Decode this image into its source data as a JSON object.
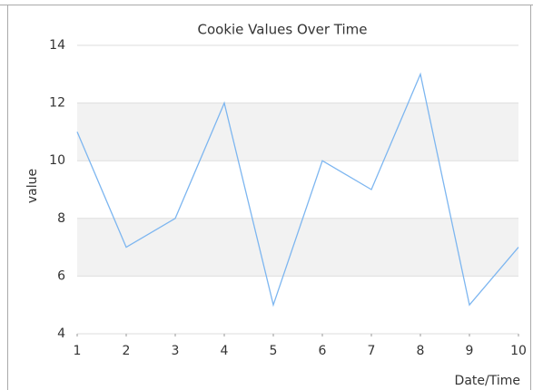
{
  "chart_data": {
    "type": "line",
    "title": "Cookie Values Over Time",
    "x_label": "Date/Time",
    "y_label": "value",
    "x": [
      1,
      2,
      3,
      4,
      5,
      6,
      7,
      8,
      9,
      10
    ],
    "series": [
      {
        "name": "value",
        "color": "#7db6f0",
        "values": [
          11,
          7,
          8,
          12,
          5,
          10,
          9,
          13,
          5,
          7
        ]
      }
    ],
    "xlim": [
      1,
      10
    ],
    "xticks": [
      1,
      2,
      3,
      4,
      5,
      6,
      7,
      8,
      9,
      10
    ],
    "ylim": [
      4,
      14
    ],
    "yticks": [
      4,
      6,
      8,
      10,
      12,
      14
    ],
    "grid": true,
    "banded": true,
    "legend": false
  }
}
